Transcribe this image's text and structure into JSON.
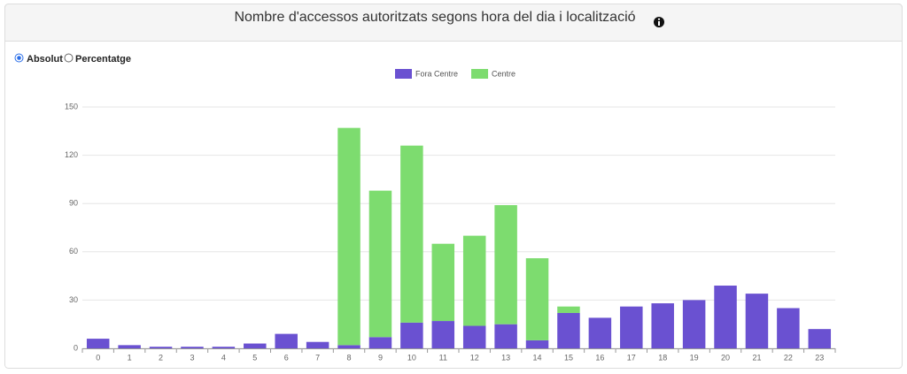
{
  "chart_data": {
    "type": "stacked-bar",
    "title": "Nombre d'accessos autoritzats segons hora del dia i localització",
    "options": [
      "Absolut",
      "Percentatge"
    ],
    "categories": [
      "0",
      "1",
      "2",
      "3",
      "4",
      "5",
      "6",
      "7",
      "8",
      "9",
      "10",
      "11",
      "12",
      "13",
      "14",
      "15",
      "16",
      "17",
      "18",
      "19",
      "20",
      "21",
      "22",
      "23"
    ],
    "series": [
      {
        "name": "Fora Centre",
        "color": "#6a51d1",
        "values": [
          6,
          2,
          1,
          1,
          1,
          3,
          9,
          4,
          2,
          7,
          16,
          17,
          14,
          15,
          5,
          22,
          19,
          26,
          28,
          30,
          39,
          34,
          25,
          12
        ]
      },
      {
        "name": "Centre",
        "color": "#7ddc6f",
        "values": [
          0,
          0,
          0,
          0,
          0,
          0,
          0,
          0,
          135,
          91,
          110,
          48,
          56,
          74,
          51,
          4,
          0,
          0,
          0,
          0,
          0,
          0,
          0,
          0
        ]
      }
    ],
    "ylim": [
      0,
      150
    ],
    "yticks": [
      0,
      30,
      60,
      90,
      120,
      150
    ],
    "grid": true,
    "legend": "top"
  }
}
